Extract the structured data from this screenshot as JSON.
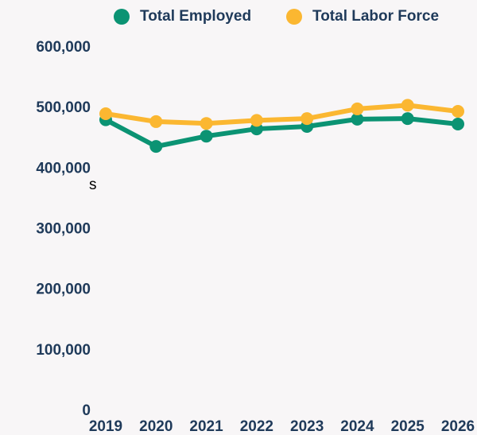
{
  "chart_data": {
    "type": "line",
    "categories": [
      "2019",
      "2020",
      "2021",
      "2022",
      "2023",
      "2024",
      "2025",
      "2026"
    ],
    "series": [
      {
        "name": "Total Employed",
        "color": "#0b9373",
        "values": [
          481000,
          437000,
          454000,
          466000,
          470000,
          482000,
          483000,
          474000
        ]
      },
      {
        "name": "Total Labor Force",
        "color": "#fbb731",
        "values": [
          491000,
          478000,
          475000,
          480000,
          483000,
          499000,
          505000,
          495000
        ]
      }
    ],
    "annotation": "s",
    "ylim": [
      0,
      600000
    ],
    "yticks": [
      0,
      {
        "value": 100000,
        "label": "100,000"
      },
      {
        "value": 200000,
        "label": "200,000"
      },
      {
        "value": 300000,
        "label": "300,000"
      },
      {
        "value": 400000,
        "label": "400,000"
      },
      {
        "value": 500000,
        "label": "500,000"
      },
      {
        "value": 600000,
        "label": "600,000"
      }
    ],
    "grid": false
  }
}
